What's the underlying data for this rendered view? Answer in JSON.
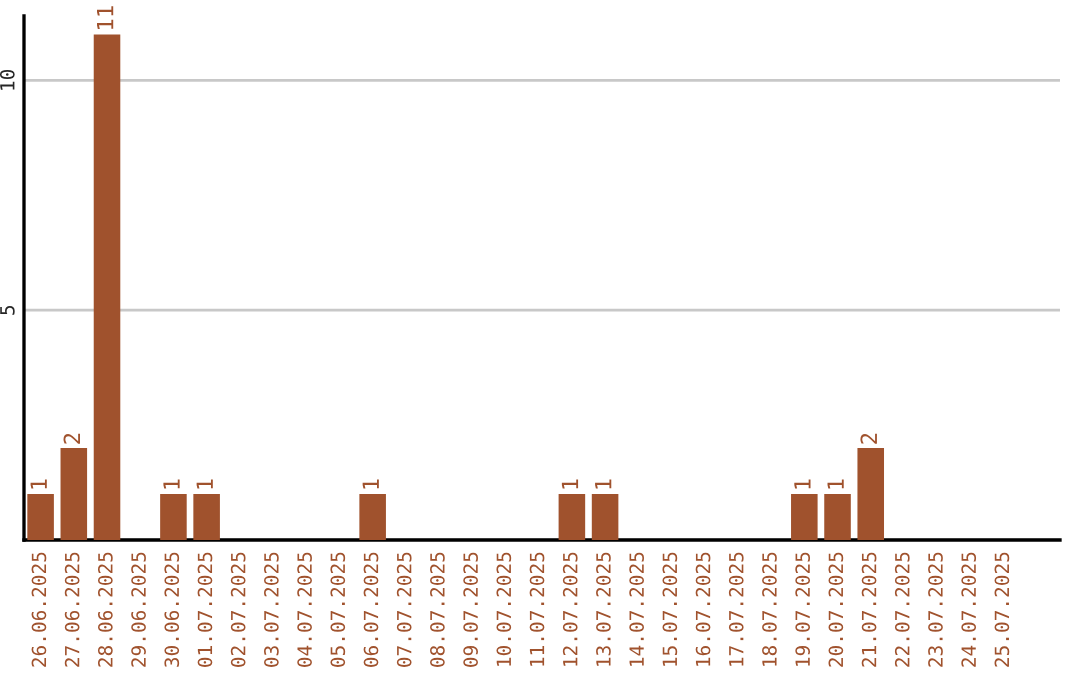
{
  "chart_data": {
    "type": "bar",
    "categories": [
      "26.06.2025",
      "27.06.2025",
      "28.06.2025",
      "29.06.2025",
      "30.06.2025",
      "01.07.2025",
      "02.07.2025",
      "03.07.2025",
      "04.07.2025",
      "05.07.2025",
      "06.07.2025",
      "07.07.2025",
      "08.07.2025",
      "09.07.2025",
      "10.07.2025",
      "11.07.2025",
      "12.07.2025",
      "13.07.2025",
      "14.07.2025",
      "15.07.2025",
      "16.07.2025",
      "17.07.2025",
      "18.07.2025",
      "19.07.2025",
      "20.07.2025",
      "21.07.2025",
      "22.07.2025",
      "23.07.2025",
      "24.07.2025",
      "25.07.2025"
    ],
    "values": [
      1,
      2,
      11,
      0,
      1,
      1,
      0,
      0,
      0,
      0,
      1,
      0,
      0,
      0,
      0,
      0,
      1,
      1,
      0,
      0,
      0,
      0,
      0,
      1,
      1,
      2,
      0,
      0,
      0,
      0
    ],
    "value_labels": [
      "1",
      "2",
      "11",
      null,
      "1",
      "1",
      null,
      null,
      null,
      null,
      "1",
      null,
      null,
      null,
      null,
      null,
      "1",
      "1",
      null,
      null,
      null,
      null,
      null,
      "1",
      "1",
      "2",
      null,
      null,
      null,
      null
    ],
    "color": "#a0522d",
    "ylim": [
      0,
      11.4
    ],
    "yticks": [
      {
        "value": 0,
        "label": null
      },
      5,
      10
    ],
    "grid": "y",
    "legend": false
  }
}
